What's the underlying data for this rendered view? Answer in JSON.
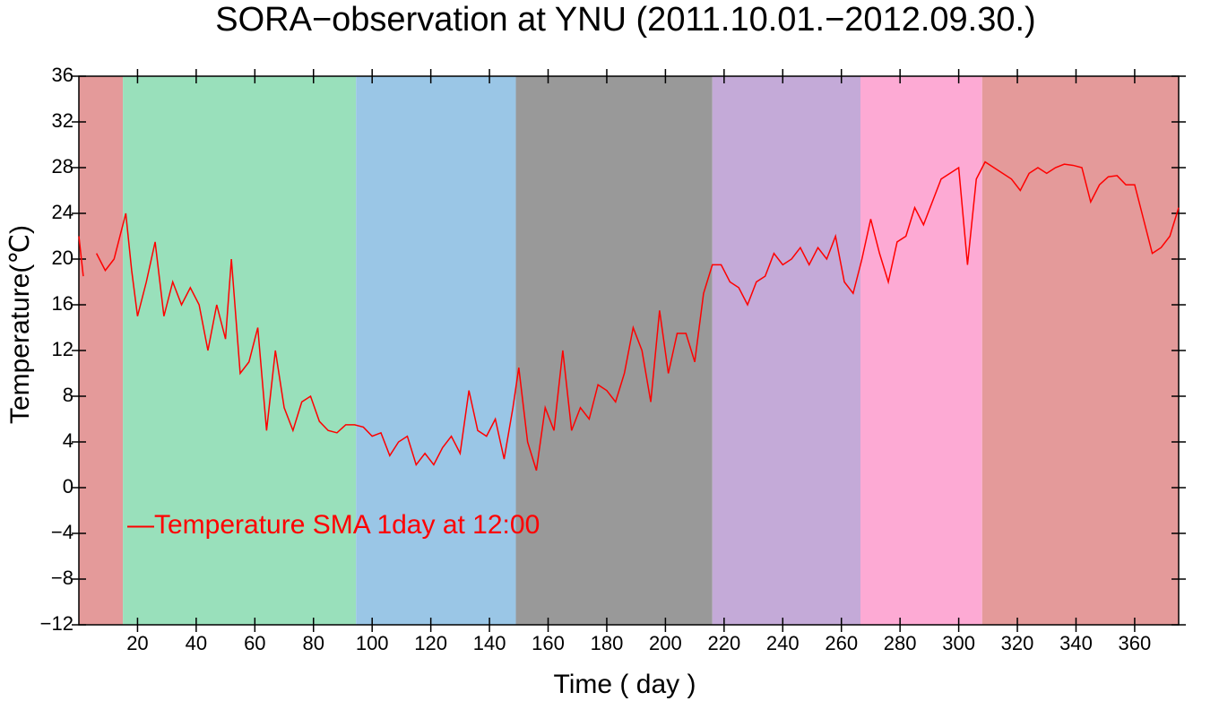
{
  "chart_data": {
    "type": "line",
    "title": "SORA−observation at YNU (2011.10.01.−2012.09.30.)",
    "x_label": "Time ( day )",
    "y_label": "Temperature(℃)",
    "bands": [
      {
        "start": 0,
        "end": 15,
        "color": "#e49a9a"
      },
      {
        "start": 15,
        "end": 94.5,
        "color": "#99e0bb"
      },
      {
        "start": 94.5,
        "end": 149,
        "color": "#9ac6e6"
      },
      {
        "start": 149,
        "end": 216,
        "color": "#999999"
      },
      {
        "start": 216,
        "end": 266.5,
        "color": "#c4aad8"
      },
      {
        "start": 266.5,
        "end": 308,
        "color": "#fdaad4"
      },
      {
        "start": 308,
        "end": 375,
        "color": "#e49a9a"
      }
    ],
    "x": [
      0,
      1.5,
      3,
      6,
      9,
      12,
      15,
      16,
      18,
      20,
      23,
      26,
      29,
      32,
      35,
      38,
      41,
      44,
      47,
      50,
      52,
      55,
      58,
      61,
      64,
      67,
      70,
      73,
      76,
      79,
      82,
      85,
      88,
      91,
      94,
      97,
      100,
      103,
      106,
      109,
      112,
      115,
      118,
      121,
      124,
      127,
      130,
      133,
      136,
      139,
      142,
      145,
      148,
      150,
      153,
      156,
      159,
      162,
      165,
      168,
      171,
      174,
      177,
      180,
      183,
      186,
      189,
      192,
      195,
      198,
      201,
      204,
      207,
      210,
      213,
      216,
      219,
      222,
      225,
      228,
      231,
      234,
      237,
      240,
      243,
      246,
      249,
      252,
      255,
      258,
      261,
      264,
      267,
      270,
      273,
      276,
      279,
      282,
      285,
      288,
      291,
      294,
      297,
      300,
      303,
      306,
      309,
      312,
      315,
      318,
      321,
      324,
      327,
      330,
      333,
      336,
      339,
      342,
      345,
      348,
      351,
      354,
      357,
      360,
      363,
      366,
      369,
      372,
      375
    ],
    "series": [
      {
        "name": "—Temperature SMA 1day at 12:00",
        "color": "#ff0000",
        "values": [
          22,
          18.5,
          null,
          20.5,
          19,
          20,
          23,
          24,
          19,
          15,
          18,
          21.5,
          15,
          18,
          16,
          17.5,
          16,
          12,
          16,
          13,
          20,
          10,
          11,
          14,
          5,
          12,
          7,
          5,
          7.5,
          8,
          5.8,
          5,
          4.8,
          5.5,
          5.5,
          5.3,
          4.5,
          4.8,
          2.8,
          4,
          4.5,
          2,
          3,
          2,
          3.5,
          4.5,
          3,
          8.5,
          5,
          4.5,
          6,
          2.5,
          7,
          10.5,
          4,
          1.5,
          7,
          5,
          12,
          5,
          7,
          6,
          9,
          8.5,
          7.5,
          10,
          14,
          12,
          7.5,
          15.5,
          10,
          13.5,
          13.5,
          11,
          17,
          19.5,
          19.5,
          18,
          17.5,
          16,
          18,
          18.5,
          20.5,
          19.5,
          20,
          21,
          19.5,
          21,
          20,
          22,
          18,
          17,
          20,
          23.5,
          20.5,
          18,
          21.5,
          22,
          24.5,
          23,
          25,
          27,
          27.5,
          28,
          19.5,
          27,
          28.5,
          28,
          27.5,
          27,
          26,
          27.5,
          28,
          27.5,
          28,
          28.3,
          28.2,
          28,
          25,
          26.5,
          27.2,
          27.3,
          26.5,
          26.5,
          23.5,
          20.5,
          21,
          22,
          24.5
        ]
      }
    ],
    "xlim": [
      0,
      375
    ],
    "xticks": [
      20,
      40,
      60,
      80,
      100,
      120,
      140,
      160,
      180,
      200,
      220,
      240,
      260,
      280,
      300,
      320,
      340,
      360
    ],
    "ylim": [
      -12,
      36
    ],
    "yticks": [
      {
        "value": -12,
        "label": "−12"
      },
      {
        "value": -8,
        "label": "−8"
      },
      {
        "value": -4,
        "label": "−4"
      },
      0,
      4,
      8,
      12,
      16,
      20,
      24,
      28,
      32,
      36
    ]
  }
}
